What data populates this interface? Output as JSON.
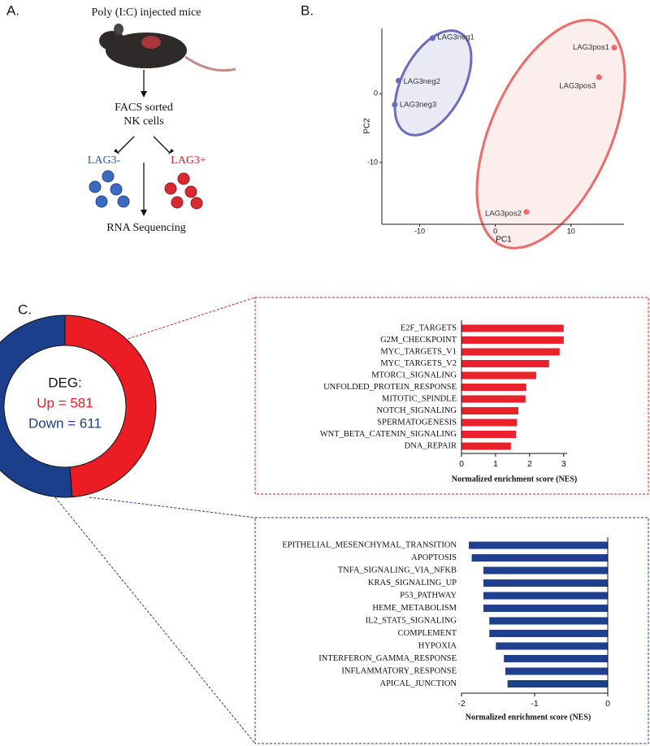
{
  "diagram": {
    "panel_a": "A.",
    "step1": "Poly (I:C) injected mice",
    "step2_line1": "FACS sorted",
    "step2_line2": "NK cells",
    "group_neg": "LAG3-",
    "group_pos": "LAG3+",
    "step3": "RNA Sequencing",
    "panel_b": "B.",
    "panel_c": "C."
  },
  "chart_data": [
    {
      "type": "scatter",
      "xlabel": "PC1",
      "ylabel": "PC2",
      "xlim": [
        -15,
        17
      ],
      "ylim": [
        -19,
        9.5
      ],
      "xticks": [
        -10,
        0,
        10
      ],
      "yticks": [
        0,
        -10
      ],
      "series": [
        {
          "name": "LAG3neg",
          "color": "#6b6bbf",
          "labels": [
            "LAG3neg1",
            "LAG3neg2",
            "LAG3neg3"
          ],
          "x": [
            -8.3,
            -12.8,
            -13.3
          ],
          "values": [
            8.1,
            1.9,
            -1.6
          ]
        },
        {
          "name": "LAG3pos",
          "color": "#ee6b6b",
          "labels": [
            "LAG3pos1",
            "LAG3pos3",
            "LAG3pos2"
          ],
          "x": [
            15.7,
            13.7,
            4.1
          ],
          "values": [
            6.7,
            2.4,
            -17.2
          ]
        }
      ]
    },
    {
      "type": "pie",
      "donut": true,
      "title": "DEG:",
      "values": [
        581,
        611
      ],
      "value_labels": [
        "Up = 581",
        "Down = 611"
      ],
      "colors": [
        "#ec1c24",
        "#1c3f8c"
      ]
    },
    {
      "type": "barh",
      "xlabel": "Normalized enrichment score (NES)",
      "color": "#e8212b",
      "xlim": [
        0,
        3.1
      ],
      "xticks": [
        0,
        1,
        2,
        3
      ],
      "categories": [
        "E2F_TARGETS",
        "G2M_CHECKPOINT",
        "MYC_TARGETS_V1",
        "MYC_TARGETS_V2",
        "MTORC1_SIGNALING",
        "UNFOLDED_PROTEIN_RESPONSE",
        "MITOTIC_SPINDLE",
        "NOTCH_SIGNALING",
        "SPERMATOGENESIS",
        "WNT_BETA_CATENIN_SIGNALING",
        "DNA_REPAIR"
      ],
      "values": [
        3.0,
        3.0,
        2.88,
        2.57,
        2.19,
        1.9,
        1.88,
        1.67,
        1.63,
        1.6,
        1.45
      ]
    },
    {
      "type": "barh",
      "xlabel": "Normalized enrichment score (NES)",
      "color": "#1f3f8f",
      "xlim": [
        -2,
        0
      ],
      "xticks": [
        -2,
        -1,
        0
      ],
      "categories": [
        "EPITHELIAL_MESENCHYMAL_TRANSITION",
        "APOPTOSIS",
        "TNFA_SIGNALING_VIA_NFKB",
        "KRAS_SIGNALING_UP",
        "P53_PATHWAY",
        "HEME_METABOLISM",
        "IL2_STAT5_SIGNALING",
        "COMPLEMENT",
        "HYPOXIA",
        "INTERFERON_GAMMA_RESPONSE",
        "INFLAMMATORY_RESPONSE",
        "APICAL_JUNCTION"
      ],
      "values": [
        -1.9,
        -1.86,
        -1.7,
        -1.7,
        -1.7,
        -1.7,
        -1.62,
        -1.62,
        -1.53,
        -1.42,
        -1.4,
        -1.37
      ]
    }
  ]
}
